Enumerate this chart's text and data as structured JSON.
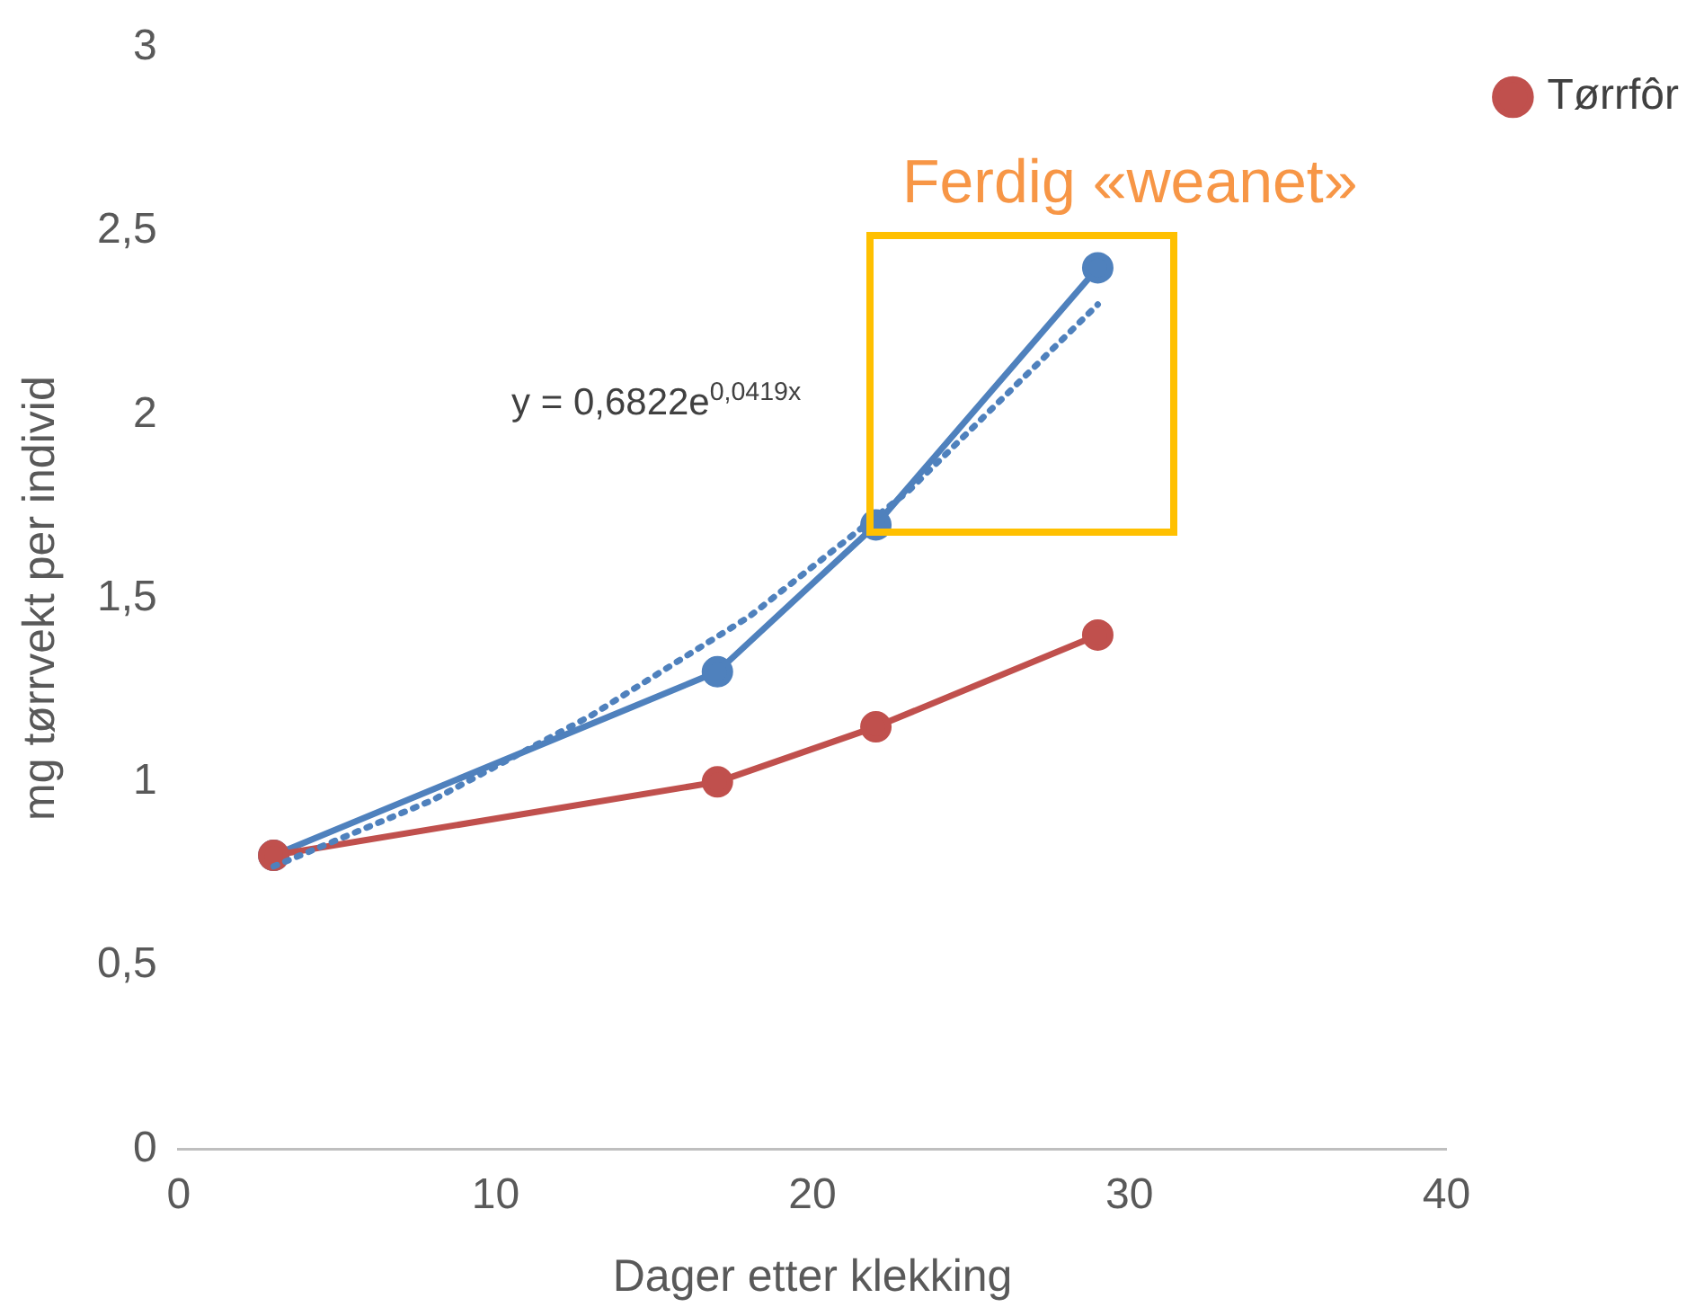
{
  "chart_data": {
    "type": "line",
    "xlabel": "Dager etter klekking",
    "ylabel": "mg tørrvekt per individ",
    "x": [
      3,
      17,
      22,
      29
    ],
    "series": [
      {
        "color": "#4f81bd",
        "values": [
          0.8,
          1.3,
          1.7,
          2.4
        ]
      },
      {
        "name": "Tørrfôr",
        "color": "#c0504d",
        "values": [
          0.8,
          1.0,
          1.15,
          1.4
        ]
      },
      {
        "color": "#4f81bd",
        "x": [
          3,
          8,
          13,
          18,
          23,
          29
        ],
        "values": [
          0.77,
          0.95,
          1.18,
          1.45,
          1.79,
          2.3
        ],
        "marker": "none",
        "line_style": "dotted"
      }
    ],
    "marker": "circle",
    "line_style": "solid",
    "xlim": [
      0,
      40
    ],
    "xticks": [
      0,
      10,
      20,
      30,
      40
    ],
    "ylim": [
      0,
      3
    ],
    "yticks": [
      0,
      {
        "value": 0.5,
        "label": "0,5"
      },
      1,
      {
        "value": 1.5,
        "label": "1,5"
      },
      2,
      {
        "value": 2.5,
        "label": "2,5"
      },
      3
    ],
    "grid": false,
    "legend": "right",
    "annotations": [
      "Ferdig «weanet»",
      "y = 0,6822e$^{0,0419x}$"
    ]
  }
}
